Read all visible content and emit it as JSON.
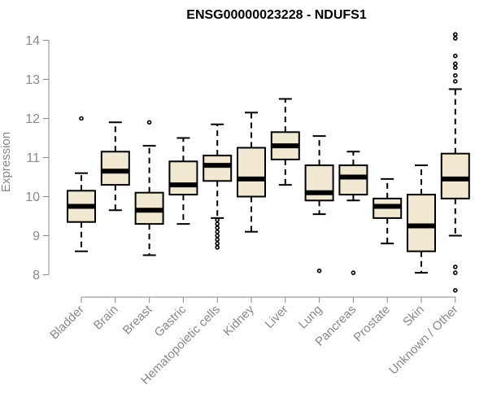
{
  "chart_data": {
    "type": "boxplot",
    "title": "ENSG00000023228 - NDUFS1",
    "xlabel": "",
    "ylabel": "Expression",
    "ylim": [
      7.5,
      14.3
    ],
    "yticks": [
      8,
      9,
      10,
      11,
      12,
      13,
      14
    ],
    "grid": false,
    "legend": "none",
    "colors": {
      "box_fill": "#f0e8d0",
      "stroke": "#000000",
      "axis": "#888888"
    },
    "categories": [
      "Bladder",
      "Brain",
      "Breast",
      "Gastric",
      "Hematopoietic cells",
      "Kidney",
      "Liver",
      "Lung",
      "Pancreas",
      "Prostate",
      "Skin",
      "Unknown / Other"
    ],
    "boxes": [
      {
        "min": 8.6,
        "q1": 9.35,
        "median": 9.75,
        "q3": 10.15,
        "max": 10.6,
        "outliers": [
          12.0
        ]
      },
      {
        "min": 9.65,
        "q1": 10.3,
        "median": 10.65,
        "q3": 11.15,
        "max": 11.9,
        "outliers": []
      },
      {
        "min": 8.5,
        "q1": 9.3,
        "median": 9.65,
        "q3": 10.1,
        "max": 11.3,
        "outliers": [
          11.9
        ]
      },
      {
        "min": 9.3,
        "q1": 10.05,
        "median": 10.3,
        "q3": 10.9,
        "max": 11.5,
        "outliers": []
      },
      {
        "min": 9.45,
        "q1": 10.4,
        "median": 10.8,
        "q3": 11.05,
        "max": 11.85,
        "outliers": [
          9.4,
          9.3,
          9.2,
          9.1,
          9.0,
          8.9,
          8.8,
          8.7
        ]
      },
      {
        "min": 9.1,
        "q1": 10.0,
        "median": 10.45,
        "q3": 11.25,
        "max": 12.15,
        "outliers": []
      },
      {
        "min": 10.3,
        "q1": 10.95,
        "median": 11.3,
        "q3": 11.65,
        "max": 12.5,
        "outliers": []
      },
      {
        "min": 9.55,
        "q1": 9.9,
        "median": 10.1,
        "q3": 10.8,
        "max": 11.55,
        "outliers": [
          8.1
        ]
      },
      {
        "min": 9.9,
        "q1": 10.05,
        "median": 10.5,
        "q3": 10.8,
        "max": 11.15,
        "outliers": [
          8.05
        ]
      },
      {
        "min": 8.8,
        "q1": 9.45,
        "median": 9.75,
        "q3": 9.95,
        "max": 10.45,
        "outliers": []
      },
      {
        "min": 8.05,
        "q1": 8.6,
        "median": 9.25,
        "q3": 10.05,
        "max": 10.8,
        "outliers": []
      },
      {
        "min": 9.0,
        "q1": 9.95,
        "median": 10.45,
        "q3": 11.1,
        "max": 12.75,
        "outliers": [
          14.15,
          14.05,
          13.6,
          13.4,
          13.3,
          13.1,
          12.95,
          8.2,
          8.05,
          7.6
        ]
      }
    ]
  }
}
